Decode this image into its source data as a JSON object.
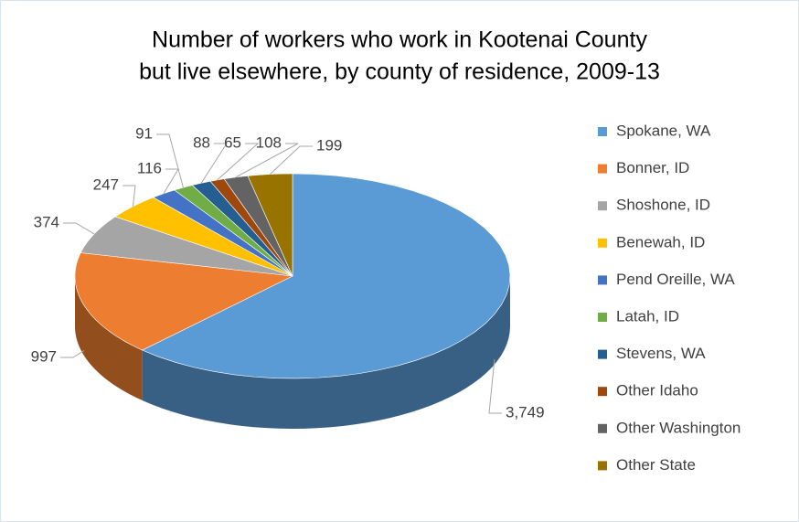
{
  "chart_data": {
    "type": "pie",
    "title": [
      "Number of workers who work in Kootenai County",
      "but live elsewhere, by county of residence, 2009-13"
    ],
    "categories": [
      "Spokane, WA",
      "Bonner, ID",
      "Shoshone, ID",
      "Benewah, ID",
      "Pend Oreille, WA",
      "Latah, ID",
      "Stevens, WA",
      "Other Idaho",
      "Other Washington",
      "Other State"
    ],
    "values": [
      3749,
      997,
      374,
      247,
      116,
      91,
      88,
      65,
      108,
      199
    ],
    "value_labels": [
      "3,749",
      "997",
      "374",
      "247",
      "116",
      "91",
      "88",
      "65",
      "108",
      "199"
    ],
    "colors": [
      "#5b9bd5",
      "#ed7d31",
      "#a5a5a5",
      "#ffc000",
      "#4472c4",
      "#70ad47",
      "#255e91",
      "#9e480e",
      "#636363",
      "#997300"
    ],
    "legend": "right"
  }
}
